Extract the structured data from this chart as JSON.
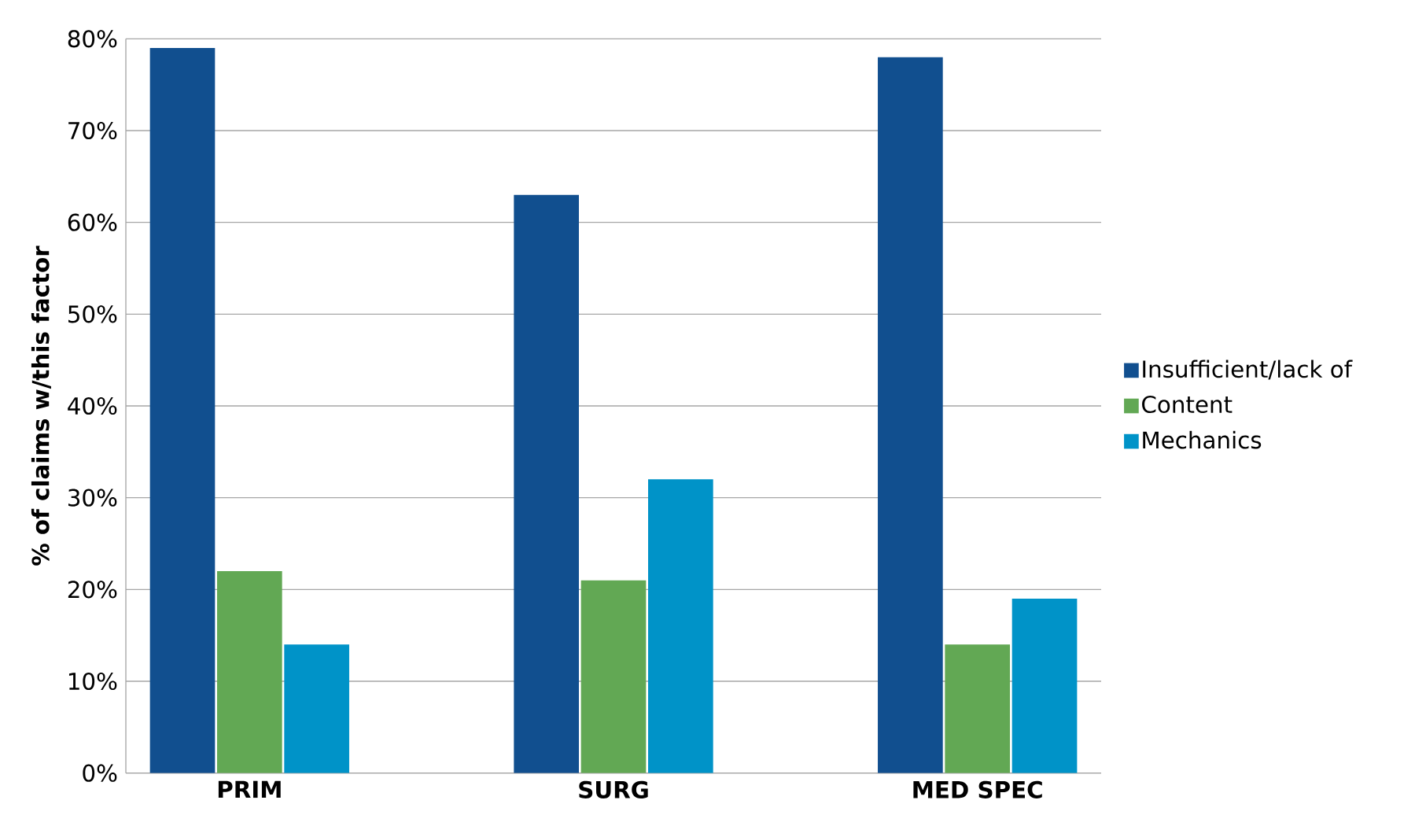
{
  "chart_data": {
    "type": "bar",
    "ylabel": "% of claims w/this factor",
    "categories": [
      "PRIM",
      "SURG",
      "MED SPEC"
    ],
    "series": [
      {
        "name": "Insufficient/lack of",
        "color": "#114f8f",
        "values": [
          79,
          63,
          78
        ]
      },
      {
        "name": "Content",
        "color": "#62a854",
        "values": [
          22,
          21,
          14
        ]
      },
      {
        "name": "Mechanics",
        "color": "#0093c8",
        "values": [
          14,
          32,
          19
        ]
      }
    ],
    "ylim": [
      0,
      80
    ],
    "yticks": [
      {
        "value": 0,
        "label": "0%"
      },
      {
        "value": 10,
        "label": "10%"
      },
      {
        "value": 20,
        "label": "20%"
      },
      {
        "value": 30,
        "label": "30%"
      },
      {
        "value": 40,
        "label": "40%"
      },
      {
        "value": 50,
        "label": "50%"
      },
      {
        "value": 60,
        "label": "60%"
      },
      {
        "value": 70,
        "label": "70%"
      },
      {
        "value": 80,
        "label": "80%"
      }
    ],
    "grid": "y",
    "legend": "right"
  }
}
